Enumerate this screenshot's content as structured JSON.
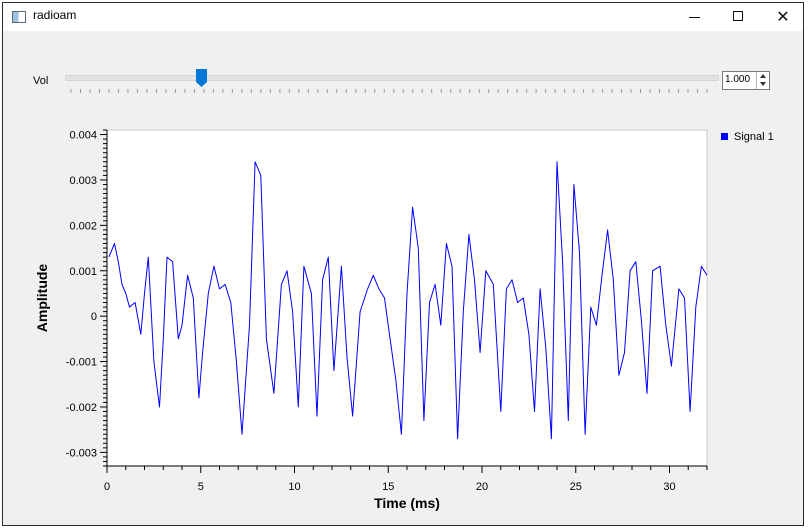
{
  "window": {
    "title": "radioam",
    "icon": "app-window-icon",
    "controls": [
      "minimize-icon",
      "maximize-icon",
      "close-icon"
    ]
  },
  "volume": {
    "label": "Vol",
    "value": "1.000",
    "slider_fraction": 0.21
  },
  "colors": {
    "signal": "#0000ff",
    "plot_bg": "#ffffff",
    "window_bg": "#f0f0f0"
  },
  "chart_data": {
    "type": "line",
    "title": "",
    "xlabel": "Time (ms)",
    "ylabel": "Amplitude",
    "xlim": [
      0,
      32
    ],
    "ylim": [
      -0.0033,
      0.0041
    ],
    "x_ticks": [
      0,
      5,
      10,
      15,
      20,
      25,
      30
    ],
    "x_tick_labels": [
      "0",
      "5",
      "10",
      "15",
      "20",
      "25",
      "30"
    ],
    "y_ticks": [
      -0.003,
      -0.002,
      -0.001,
      0,
      0.001,
      0.002,
      0.003,
      0.004
    ],
    "y_tick_labels": [
      "-0.003",
      "-0.002",
      "-0.001",
      "0",
      "0.001",
      "0.002",
      "0.003",
      "0.004"
    ],
    "legend": {
      "position": "top-right-outside",
      "entries": [
        "Signal 1"
      ]
    },
    "series": [
      {
        "name": "Signal 1",
        "x": [
          0.1,
          0.4,
          0.6,
          0.8,
          1.0,
          1.2,
          1.5,
          1.8,
          2.0,
          2.2,
          2.5,
          2.8,
          3.0,
          3.2,
          3.5,
          3.8,
          4.0,
          4.3,
          4.6,
          4.9,
          5.1,
          5.4,
          5.7,
          6.0,
          6.3,
          6.6,
          6.9,
          7.2,
          7.6,
          7.9,
          8.2,
          8.5,
          8.9,
          9.3,
          9.6,
          9.9,
          10.2,
          10.5,
          10.9,
          11.2,
          11.5,
          11.8,
          12.1,
          12.5,
          12.8,
          13.1,
          13.5,
          13.9,
          14.2,
          14.5,
          14.8,
          15.1,
          15.4,
          15.7,
          16.0,
          16.3,
          16.6,
          16.9,
          17.2,
          17.5,
          17.8,
          18.1,
          18.4,
          18.7,
          19.0,
          19.3,
          19.6,
          19.9,
          20.2,
          20.6,
          21.0,
          21.3,
          21.6,
          21.9,
          22.2,
          22.5,
          22.8,
          23.1,
          23.4,
          23.7,
          24.0,
          24.3,
          24.6,
          24.9,
          25.2,
          25.5,
          25.8,
          26.1,
          26.4,
          26.7,
          27.0,
          27.3,
          27.6,
          27.9,
          28.2,
          28.5,
          28.8,
          29.1,
          29.5,
          29.8,
          30.1,
          30.5,
          30.8,
          31.1,
          31.4,
          31.7,
          32.0
        ],
        "y": [
          0.0013,
          0.0016,
          0.0012,
          0.0007,
          0.0005,
          0.0002,
          0.0003,
          -0.0004,
          0.0005,
          0.0013,
          -0.001,
          -0.002,
          -0.0005,
          0.0013,
          0.0012,
          -0.0005,
          -0.0002,
          0.0009,
          0.0004,
          -0.0018,
          -0.0008,
          0.0005,
          0.0011,
          0.0006,
          0.0007,
          0.0003,
          -0.001,
          -0.0026,
          -0.0002,
          0.0034,
          0.0031,
          -0.0005,
          -0.0017,
          0.0007,
          0.001,
          0.0001,
          -0.002,
          0.0011,
          0.0005,
          -0.0022,
          0.0008,
          0.0013,
          -0.0012,
          0.0011,
          -0.0009,
          -0.0022,
          0.0001,
          0.0006,
          0.0009,
          0.0006,
          0.0004,
          -0.0005,
          -0.0014,
          -0.0026,
          0.0005,
          0.0024,
          0.0015,
          -0.0023,
          0.0003,
          0.0007,
          -0.0002,
          0.0016,
          0.0011,
          -0.0027,
          0.0001,
          0.0018,
          0.0008,
          -0.0008,
          0.001,
          0.0007,
          -0.0021,
          0.0006,
          0.0008,
          0.0003,
          0.0004,
          -0.0004,
          -0.0021,
          0.0006,
          -0.0007,
          -0.0027,
          0.0034,
          0.0012,
          -0.0023,
          0.0029,
          0.0014,
          -0.0026,
          0.0002,
          -0.0002,
          0.0009,
          0.0019,
          0.0008,
          -0.0013,
          -0.0008,
          0.001,
          0.0012,
          -0.0001,
          -0.0017,
          0.001,
          0.0011,
          -0.0002,
          -0.0011,
          0.0006,
          0.0004,
          -0.0021,
          0.0002,
          0.0011,
          0.0009
        ]
      }
    ]
  }
}
